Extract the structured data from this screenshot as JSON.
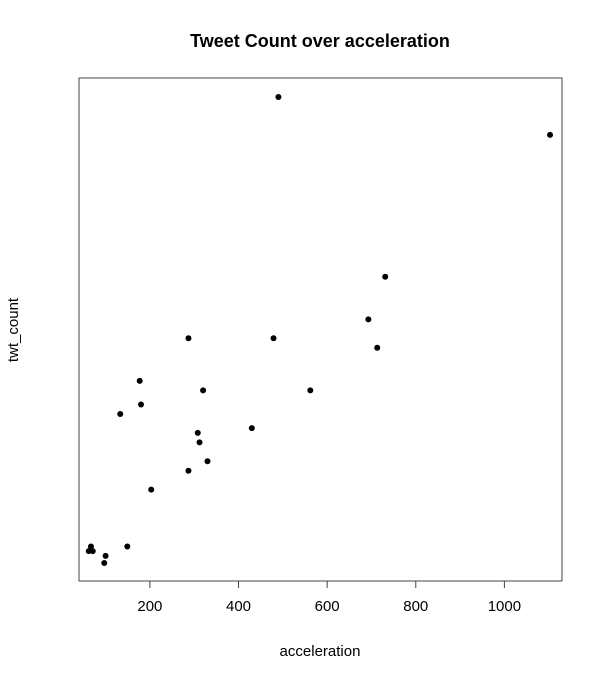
{
  "chart_data": {
    "type": "scatter",
    "title": "Tweet Count over acceleration",
    "xlabel": "acceleration",
    "ylabel": "twt_count",
    "xlim": [
      40,
      1130
    ],
    "xticks": [
      200,
      400,
      600,
      800,
      1000
    ],
    "yticks_visible": false,
    "grid": false,
    "legend": "none",
    "point_color": "#000000",
    "series": [
      {
        "points": [
          {
            "x": 490,
            "y": 100
          },
          {
            "x": 1103,
            "y": 92
          },
          {
            "x": 731,
            "y": 62
          },
          {
            "x": 693,
            "y": 53
          },
          {
            "x": 713,
            "y": 47
          },
          {
            "x": 287,
            "y": 49
          },
          {
            "x": 479,
            "y": 49
          },
          {
            "x": 562,
            "y": 38
          },
          {
            "x": 320,
            "y": 38
          },
          {
            "x": 177,
            "y": 40
          },
          {
            "x": 180,
            "y": 35
          },
          {
            "x": 133,
            "y": 33
          },
          {
            "x": 430,
            "y": 30
          },
          {
            "x": 308,
            "y": 29
          },
          {
            "x": 312,
            "y": 27
          },
          {
            "x": 330,
            "y": 23
          },
          {
            "x": 287,
            "y": 21
          },
          {
            "x": 203,
            "y": 17
          },
          {
            "x": 67,
            "y": 5
          },
          {
            "x": 149,
            "y": 5
          },
          {
            "x": 62,
            "y": 4
          },
          {
            "x": 71,
            "y": 4
          },
          {
            "x": 100,
            "y": 3
          },
          {
            "x": 97,
            "y": 1.5
          }
        ]
      }
    ]
  }
}
